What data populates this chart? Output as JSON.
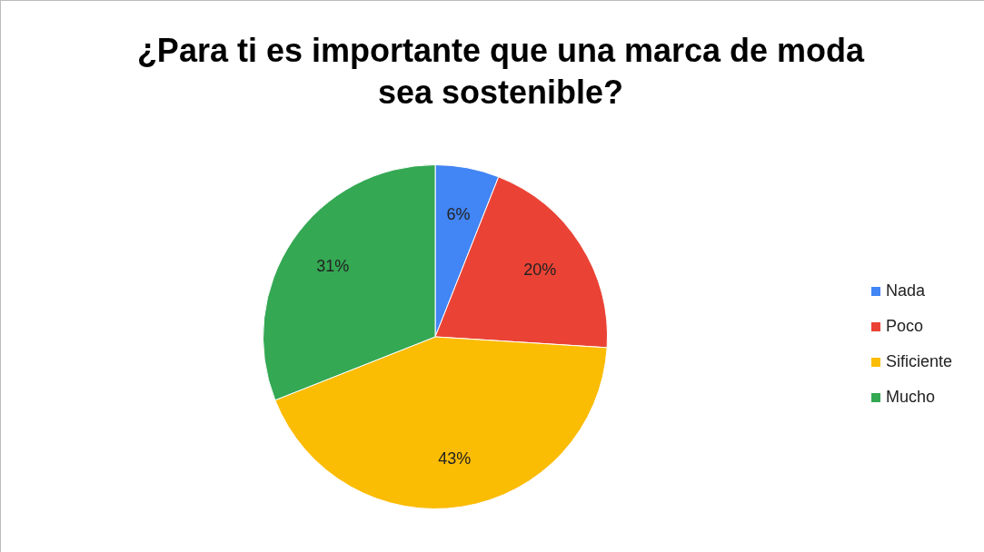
{
  "chart_data": {
    "type": "pie",
    "title": "¿Para ti es importante que una marca de moda sea sostenible?",
    "categories": [
      "Nada",
      "Poco",
      "Sificiente",
      "Mucho"
    ],
    "values": [
      6,
      20,
      43,
      31
    ],
    "value_labels": [
      "6%",
      "20%",
      "43%",
      "31%"
    ],
    "colors": [
      "#4285f4",
      "#ea4335",
      "#fbbc04",
      "#34a853"
    ],
    "legend": "right"
  }
}
